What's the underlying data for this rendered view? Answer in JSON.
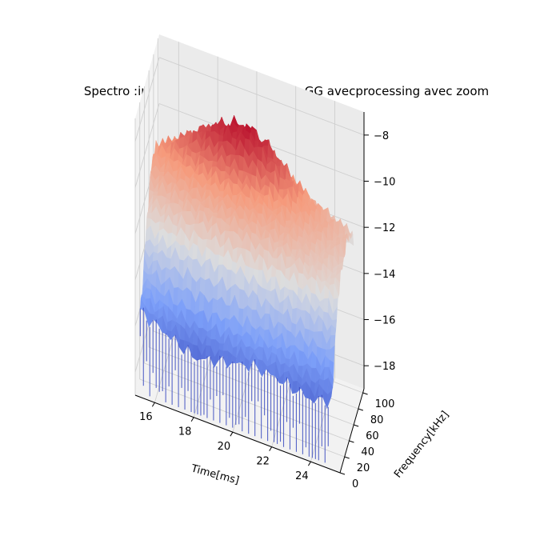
{
  "chart_data": {
    "type": "surface3d",
    "title": "Spectro :indice 17000 label 0 classe GG avecprocessing avec zoom",
    "xlabel": "Time[ms]",
    "ylabel": "Frequency[kHz]",
    "zlabel": "",
    "xlim": [
      15,
      25.5
    ],
    "ylim": [
      0,
      105
    ],
    "zlim": [
      -19,
      -7
    ],
    "x_ticks": [
      16,
      18,
      20,
      22,
      24
    ],
    "y_ticks": [
      0,
      20,
      40,
      60,
      80,
      100
    ],
    "z_ticks": [
      -8,
      -10,
      -12,
      -14,
      -16,
      -18
    ],
    "colormap": "coolwarm",
    "grid": true,
    "surface_profile": {
      "time_ms": [
        15.2,
        16,
        17,
        18,
        19,
        20,
        21,
        22,
        23,
        24,
        25
      ],
      "freq_khz": [
        5,
        15,
        25,
        35,
        45,
        55,
        65,
        75,
        85,
        95,
        102
      ],
      "level": [
        [
          -15.5,
          -15.8,
          -16.2,
          -16.6,
          -16.4,
          -16.2,
          -16.0,
          -16.1,
          -16.3,
          -16.5,
          -16.2
        ],
        [
          -14.6,
          -14.9,
          -15.2,
          -15.4,
          -15.2,
          -15.0,
          -14.9,
          -15.0,
          -15.2,
          -15.3,
          -15.1
        ],
        [
          -13.6,
          -13.4,
          -13.2,
          -13.1,
          -13.0,
          -12.9,
          -13.1,
          -13.3,
          -13.5,
          -13.7,
          -13.8
        ],
        [
          -12.4,
          -12.1,
          -11.8,
          -11.6,
          -11.5,
          -11.4,
          -11.6,
          -11.8,
          -12.0,
          -12.3,
          -12.6
        ],
        [
          -11.6,
          -11.3,
          -11.0,
          -10.8,
          -10.7,
          -10.6,
          -10.9,
          -11.2,
          -11.5,
          -11.9,
          -12.3
        ],
        [
          -10.9,
          -10.6,
          -10.2,
          -9.9,
          -9.7,
          -9.8,
          -10.2,
          -10.7,
          -11.2,
          -11.6,
          -12.0
        ],
        [
          -10.5,
          -10.0,
          -9.4,
          -8.9,
          -8.6,
          -8.5,
          -9.0,
          -9.8,
          -10.6,
          -11.2,
          -11.7
        ],
        [
          -10.8,
          -10.3,
          -9.6,
          -8.9,
          -8.4,
          -8.3,
          -8.8,
          -9.7,
          -10.5,
          -11.1,
          -11.6
        ],
        [
          -11.3,
          -10.9,
          -10.4,
          -10.0,
          -9.7,
          -9.6,
          -9.9,
          -10.4,
          -10.9,
          -11.3,
          -11.7
        ],
        [
          -11.8,
          -11.5,
          -11.2,
          -11.0,
          -10.8,
          -10.8,
          -11.0,
          -11.3,
          -11.6,
          -11.9,
          -12.2
        ],
        [
          -12.4,
          -12.2,
          -12.0,
          -11.9,
          -11.8,
          -11.8,
          -12.0,
          -12.2,
          -12.4,
          -12.6,
          -12.8
        ]
      ]
    }
  }
}
